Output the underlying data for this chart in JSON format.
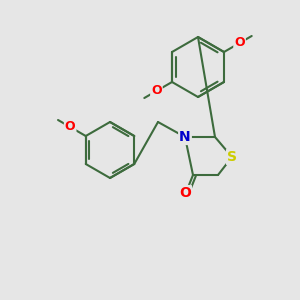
{
  "background_color": "#e6e6e6",
  "bond_color": "#3d6b3d",
  "atom_colors": {
    "O": "#ff0000",
    "N": "#0000cc",
    "S": "#cccc00",
    "C": "#3d6b3d"
  },
  "figsize": [
    3.0,
    3.0
  ],
  "dpi": 100
}
